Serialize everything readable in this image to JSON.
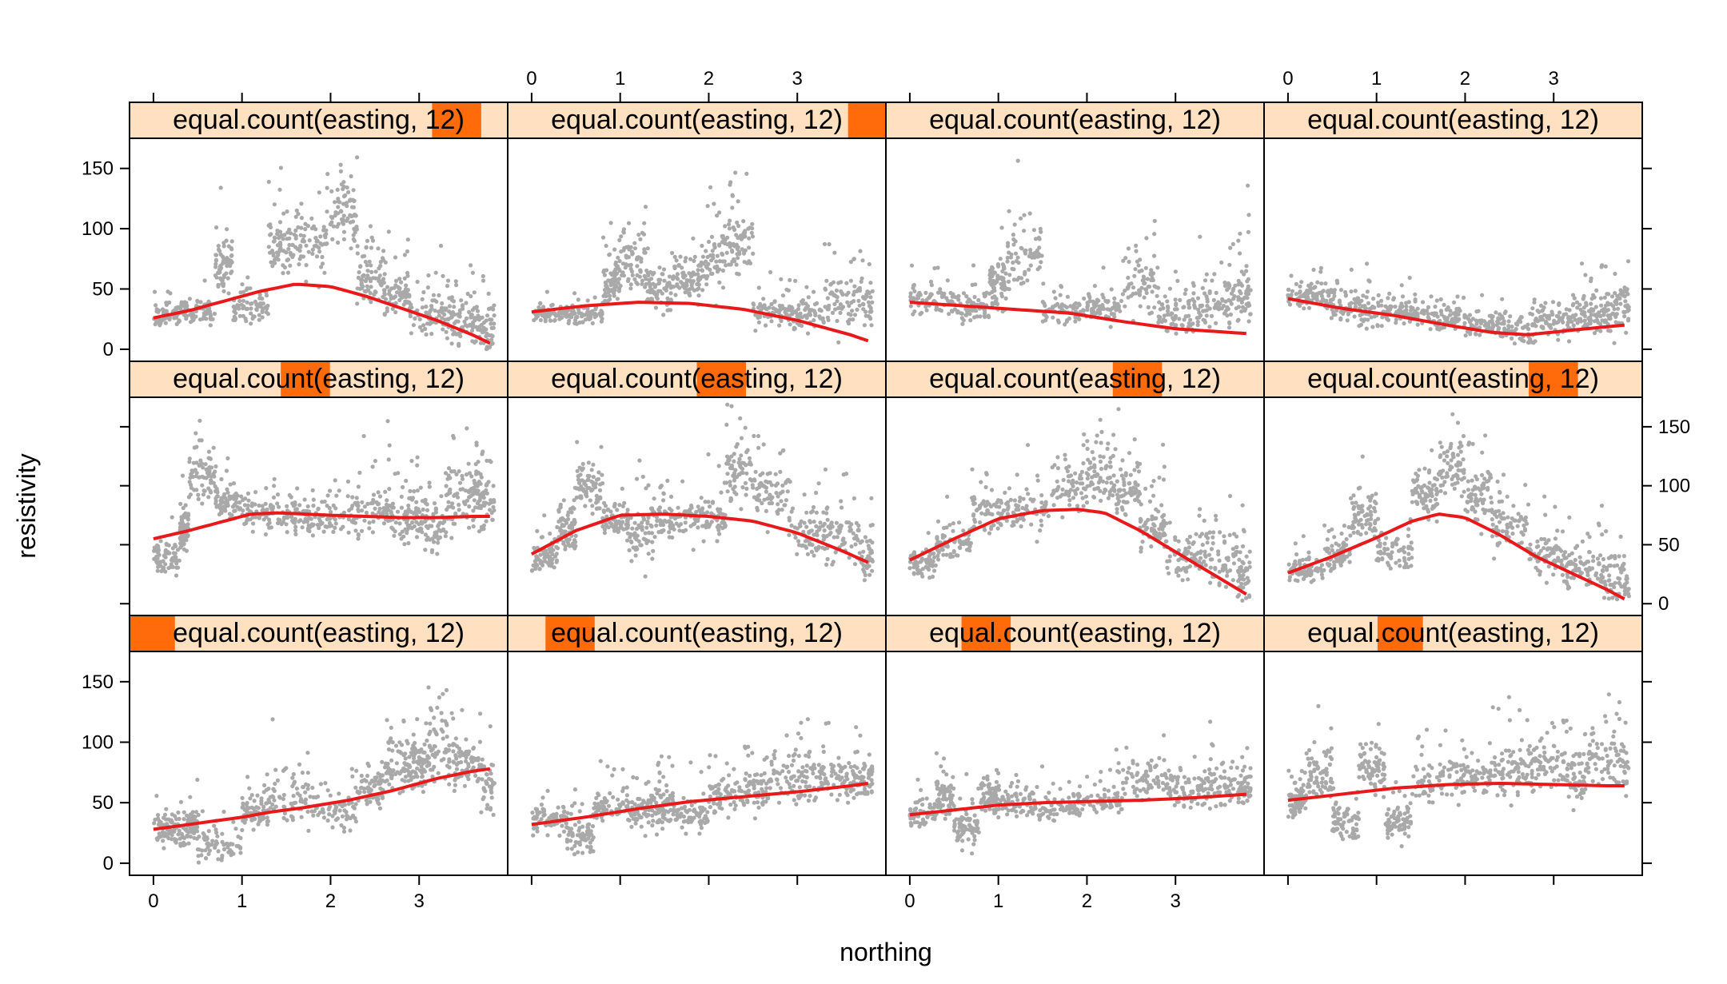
{
  "chart_data": {
    "type": "scatter",
    "xlabel": "northing",
    "ylabel": "resistivity",
    "xlim": [
      -0.27,
      4.0
    ],
    "ylim": [
      -10,
      175
    ],
    "x_ticks": [
      0,
      1,
      2,
      3
    ],
    "y_ticks": [
      0,
      50,
      100,
      150
    ],
    "grid": false,
    "colors": {
      "points": "#a9a9a9",
      "smooth": "#e8191b",
      "strip_bg": "#ffe0c0",
      "strip_shingle": "#ff6a0b",
      "frame": "#000000"
    },
    "panels": [
      {
        "strip": "equal.count(easting, 12)",
        "shingle": [
          0.0,
          0.12
        ],
        "smooth_x": [
          0.0,
          0.5,
          1.0,
          1.3,
          1.7,
          2.2,
          2.7,
          3.2,
          3.6,
          3.8
        ],
        "smooth_y": [
          28,
          33,
          38,
          42,
          46,
          52,
          60,
          70,
          76,
          78
        ],
        "cloud": [
          [
            0.0,
            28,
            12
          ],
          [
            0.3,
            30,
            15
          ],
          [
            0.5,
            15,
            12
          ],
          [
            1.0,
            42,
            14
          ],
          [
            1.3,
            55,
            25
          ],
          [
            1.8,
            42,
            15
          ],
          [
            2.3,
            60,
            18
          ],
          [
            2.6,
            80,
            20
          ],
          [
            2.9,
            82,
            20
          ],
          [
            3.1,
            95,
            30
          ],
          [
            3.4,
            82,
            18
          ],
          [
            3.7,
            62,
            22
          ]
        ]
      },
      {
        "strip": "equal.count(easting, 12)",
        "shingle": [
          0.1,
          0.23
        ],
        "smooth_x": [
          0.0,
          0.6,
          1.2,
          1.8,
          2.4,
          3.0,
          3.6,
          3.8
        ],
        "smooth_y": [
          32,
          38,
          45,
          51,
          55,
          59,
          64,
          66
        ],
        "cloud": [
          [
            0.0,
            38,
            12
          ],
          [
            0.4,
            22,
            14
          ],
          [
            0.7,
            48,
            14
          ],
          [
            1.1,
            45,
            15
          ],
          [
            1.4,
            48,
            20
          ],
          [
            1.6,
            38,
            16
          ],
          [
            2.0,
            55,
            14
          ],
          [
            2.4,
            62,
            16
          ],
          [
            2.7,
            72,
            22
          ],
          [
            3.1,
            70,
            20
          ],
          [
            3.5,
            68,
            18
          ],
          [
            3.8,
            70,
            14
          ]
        ]
      },
      {
        "strip": "equal.count(easting, 12)",
        "shingle": [
          0.2,
          0.33
        ],
        "smooth_x": [
          0.0,
          0.5,
          1.0,
          1.5,
          2.0,
          2.6,
          3.2,
          3.8
        ],
        "smooth_y": [
          40,
          44,
          48,
          50,
          51,
          52,
          54,
          57
        ],
        "cloud": [
          [
            0.0,
            40,
            10
          ],
          [
            0.3,
            55,
            16
          ],
          [
            0.5,
            30,
            16
          ],
          [
            0.8,
            55,
            14
          ],
          [
            1.0,
            50,
            12
          ],
          [
            1.4,
            45,
            12
          ],
          [
            1.9,
            52,
            12
          ],
          [
            2.4,
            70,
            16
          ],
          [
            2.9,
            60,
            12
          ],
          [
            3.3,
            65,
            16
          ],
          [
            3.7,
            60,
            12
          ]
        ]
      },
      {
        "strip": "equal.count(easting, 12)",
        "shingle": [
          0.3,
          0.42
        ],
        "smooth_x": [
          0.0,
          0.6,
          1.2,
          1.8,
          2.4,
          3.0,
          3.6,
          3.8
        ],
        "smooth_y": [
          52,
          57,
          62,
          65,
          66,
          65,
          64,
          64
        ],
        "cloud": [
          [
            0.0,
            50,
            14
          ],
          [
            0.2,
            75,
            22
          ],
          [
            0.5,
            35,
            16
          ],
          [
            0.8,
            80,
            22
          ],
          [
            1.1,
            35,
            14
          ],
          [
            1.4,
            70,
            20
          ],
          [
            1.9,
            70,
            18
          ],
          [
            2.3,
            75,
            22
          ],
          [
            2.7,
            80,
            22
          ],
          [
            3.1,
            75,
            20
          ],
          [
            3.4,
            85,
            24
          ],
          [
            3.8,
            72,
            18
          ]
        ]
      },
      {
        "strip": "equal.count(easting, 12)",
        "shingle": [
          0.4,
          0.53
        ],
        "smooth_x": [
          0.0,
          0.4,
          0.8,
          1.1,
          1.4,
          1.7,
          2.0,
          2.4,
          2.8,
          3.2,
          3.6,
          3.8
        ],
        "smooth_y": [
          55,
          62,
          70,
          76,
          77,
          76,
          75,
          74,
          73,
          73,
          74,
          74
        ],
        "cloud": [
          [
            0.0,
            40,
            16
          ],
          [
            0.3,
            62,
            16
          ],
          [
            0.4,
            110,
            22
          ],
          [
            0.7,
            85,
            14
          ],
          [
            1.0,
            78,
            14
          ],
          [
            1.4,
            74,
            16
          ],
          [
            1.8,
            74,
            16
          ],
          [
            2.3,
            78,
            22
          ],
          [
            2.7,
            75,
            22
          ],
          [
            3.0,
            68,
            22
          ],
          [
            3.3,
            88,
            26
          ],
          [
            3.6,
            95,
            30
          ],
          [
            3.8,
            75,
            24
          ]
        ]
      },
      {
        "strip": "equal.count(easting, 12)",
        "shingle": [
          0.5,
          0.63
        ],
        "smooth_x": [
          0.0,
          0.5,
          1.0,
          1.5,
          2.0,
          2.5,
          3.0,
          3.5,
          3.8
        ],
        "smooth_y": [
          42,
          62,
          75,
          76,
          74,
          70,
          60,
          45,
          35
        ],
        "cloud": [
          [
            0.0,
            40,
            14
          ],
          [
            0.3,
            65,
            20
          ],
          [
            0.5,
            100,
            22
          ],
          [
            0.8,
            72,
            16
          ],
          [
            1.1,
            62,
            26
          ],
          [
            1.4,
            72,
            16
          ],
          [
            1.8,
            70,
            20
          ],
          [
            2.2,
            110,
            24
          ],
          [
            2.5,
            95,
            22
          ],
          [
            2.9,
            62,
            20
          ],
          [
            3.3,
            55,
            24
          ],
          [
            3.7,
            40,
            20
          ]
        ]
      },
      {
        "strip": "equal.count(easting, 12)",
        "shingle": [
          0.6,
          0.73
        ],
        "smooth_x": [
          0.0,
          0.5,
          1.0,
          1.5,
          1.9,
          2.2,
          2.6,
          3.0,
          3.4,
          3.8
        ],
        "smooth_y": [
          37,
          55,
          72,
          79,
          80,
          77,
          62,
          44,
          26,
          8
        ],
        "cloud": [
          [
            0.0,
            35,
            12
          ],
          [
            0.3,
            50,
            14
          ],
          [
            0.7,
            78,
            16
          ],
          [
            1.1,
            80,
            20
          ],
          [
            1.6,
            100,
            22
          ],
          [
            2.0,
            110,
            24
          ],
          [
            2.3,
            95,
            24
          ],
          [
            2.6,
            65,
            20
          ],
          [
            2.9,
            40,
            18
          ],
          [
            3.3,
            40,
            22
          ],
          [
            3.7,
            25,
            18
          ]
        ]
      },
      {
        "strip": "equal.count(easting, 12)",
        "shingle": [
          0.7,
          0.83
        ],
        "smooth_x": [
          0.0,
          0.5,
          1.0,
          1.4,
          1.7,
          2.0,
          2.4,
          2.8,
          3.2,
          3.6,
          3.8
        ],
        "smooth_y": [
          26,
          40,
          56,
          70,
          76,
          73,
          58,
          40,
          26,
          12,
          4
        ],
        "cloud": [
          [
            0.0,
            28,
            10
          ],
          [
            0.4,
            40,
            14
          ],
          [
            0.7,
            75,
            20
          ],
          [
            1.0,
            45,
            16
          ],
          [
            1.4,
            95,
            22
          ],
          [
            1.7,
            115,
            26
          ],
          [
            2.0,
            95,
            24
          ],
          [
            2.3,
            65,
            22
          ],
          [
            2.7,
            40,
            18
          ],
          [
            3.1,
            30,
            18
          ],
          [
            3.5,
            25,
            20
          ],
          [
            3.8,
            10,
            12
          ]
        ]
      },
      {
        "strip": "equal.count(easting, 12)",
        "shingle": [
          0.8,
          0.93
        ],
        "smooth_x": [
          0.0,
          0.4,
          0.8,
          1.2,
          1.6,
          2.0,
          2.4,
          2.8,
          3.2,
          3.6,
          3.8
        ],
        "smooth_y": [
          26,
          32,
          40,
          48,
          54,
          52,
          44,
          34,
          24,
          12,
          5
        ],
        "cloud": [
          [
            0.0,
            28,
            8
          ],
          [
            0.3,
            32,
            12
          ],
          [
            0.7,
            70,
            22
          ],
          [
            0.9,
            35,
            12
          ],
          [
            1.3,
            85,
            24
          ],
          [
            1.6,
            90,
            28
          ],
          [
            2.0,
            115,
            32
          ],
          [
            2.3,
            60,
            22
          ],
          [
            2.6,
            45,
            18
          ],
          [
            2.9,
            30,
            16
          ],
          [
            3.3,
            25,
            20
          ],
          [
            3.6,
            20,
            20
          ]
        ]
      },
      {
        "strip": "equal.count(easting, 12)",
        "shingle": [
          0.9,
          1.03
        ],
        "smooth_x": [
          0.0,
          0.6,
          1.2,
          1.8,
          2.4,
          3.0,
          3.6,
          3.8
        ],
        "smooth_y": [
          31,
          36,
          39,
          38,
          33,
          24,
          12,
          7
        ],
        "cloud": [
          [
            0.0,
            30,
            6
          ],
          [
            0.4,
            28,
            8
          ],
          [
            0.8,
            55,
            20
          ],
          [
            1.0,
            75,
            26
          ],
          [
            1.3,
            50,
            20
          ],
          [
            1.6,
            60,
            20
          ],
          [
            1.9,
            75,
            26
          ],
          [
            2.2,
            90,
            28
          ],
          [
            2.5,
            30,
            12
          ],
          [
            2.9,
            28,
            12
          ],
          [
            3.3,
            40,
            22
          ],
          [
            3.7,
            40,
            20
          ]
        ]
      },
      {
        "strip": "equal.count(easting, 12)",
        "shingle": [
          1.0,
          1.13
        ],
        "smooth_x": [
          0.0,
          0.6,
          1.2,
          1.8,
          2.4,
          3.0,
          3.6,
          3.8
        ],
        "smooth_y": [
          39,
          36,
          33,
          30,
          23,
          17,
          14,
          13
        ],
        "cloud": [
          [
            0.0,
            40,
            12
          ],
          [
            0.5,
            35,
            14
          ],
          [
            0.9,
            55,
            22
          ],
          [
            1.1,
            75,
            28
          ],
          [
            1.5,
            32,
            10
          ],
          [
            2.0,
            35,
            12
          ],
          [
            2.4,
            55,
            26
          ],
          [
            2.8,
            30,
            18
          ],
          [
            3.2,
            35,
            20
          ],
          [
            3.6,
            45,
            26
          ]
        ]
      },
      {
        "strip": "equal.count(easting, 12)",
        "shingle": [
          1.1,
          1.23
        ],
        "smooth_x": [
          0.0,
          0.6,
          1.2,
          1.8,
          2.3,
          2.7,
          3.1,
          3.5,
          3.8
        ],
        "smooth_y": [
          42,
          34,
          28,
          20,
          14,
          12,
          15,
          18,
          20
        ],
        "cloud": [
          [
            0.0,
            45,
            10
          ],
          [
            0.4,
            38,
            12
          ],
          [
            0.8,
            32,
            12
          ],
          [
            1.2,
            30,
            10
          ],
          [
            1.6,
            25,
            10
          ],
          [
            2.0,
            20,
            10
          ],
          [
            2.4,
            18,
            14
          ],
          [
            2.8,
            25,
            16
          ],
          [
            3.2,
            30,
            18
          ],
          [
            3.5,
            35,
            20
          ],
          [
            3.8,
            38,
            20
          ]
        ]
      }
    ]
  }
}
